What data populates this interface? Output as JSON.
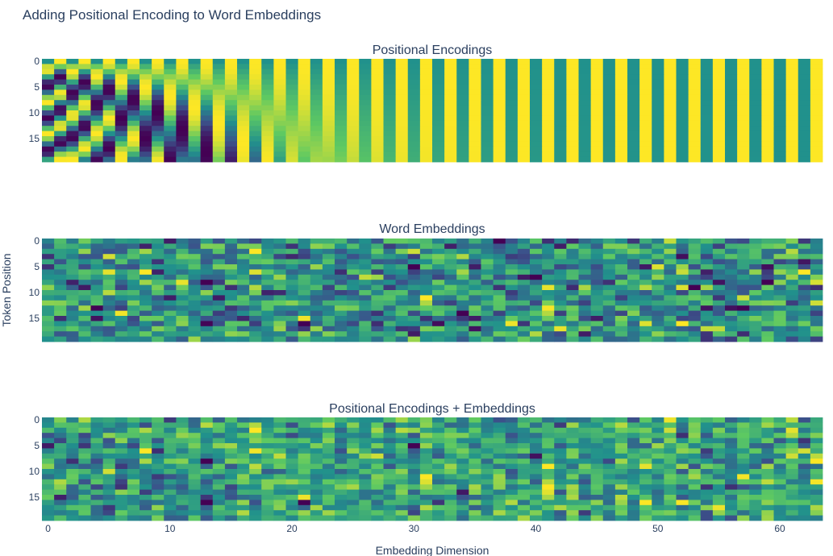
{
  "chart_data": {
    "type": "heatmap",
    "title": "Adding Positional Encoding to Word Embeddings",
    "xlabel": "Embedding Dimension",
    "ylabel": "Token Position",
    "colorscale": "viridis",
    "colors": [
      "#440154",
      "#3b528b",
      "#21918c",
      "#5ec962",
      "#fde725"
    ],
    "n_positions": 20,
    "n_dims": 64,
    "x_ticks": [
      "0",
      "10",
      "20",
      "30",
      "40",
      "50",
      "60"
    ],
    "y_ticks": [
      "0",
      "5",
      "10",
      "15"
    ],
    "panels": [
      {
        "title": "Positional Encodings",
        "kind": "sinusoidal"
      },
      {
        "title": "Word Embeddings",
        "kind": "random"
      },
      {
        "title": "Positional Encodings + Embeddings",
        "kind": "sum"
      }
    ]
  }
}
